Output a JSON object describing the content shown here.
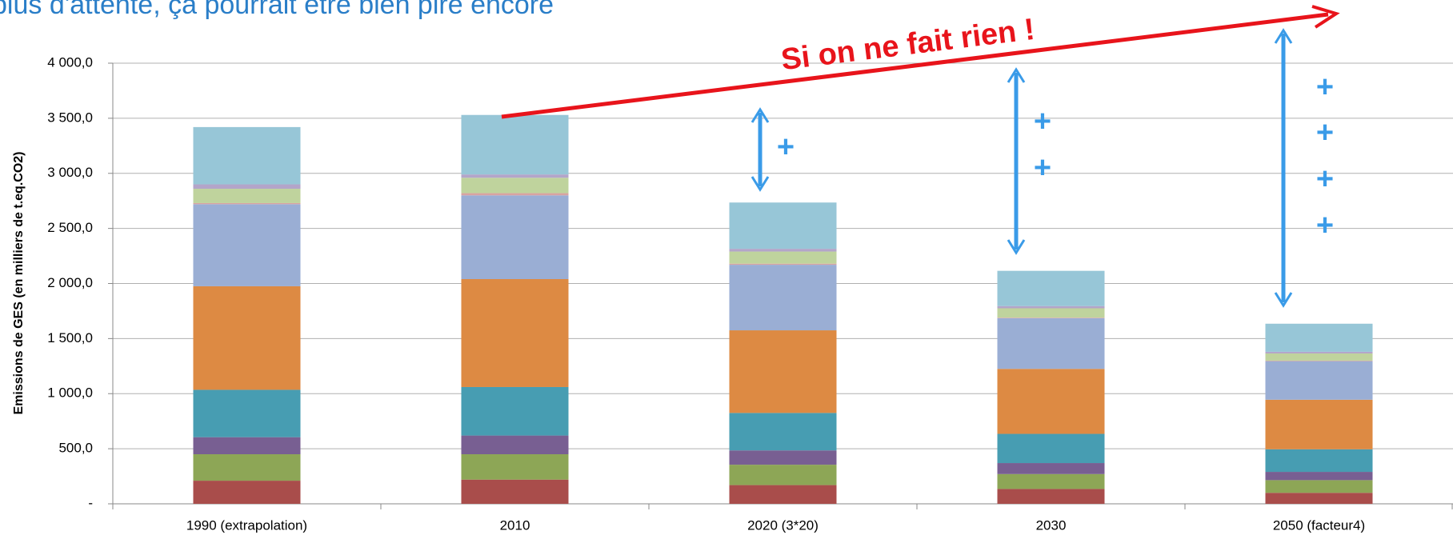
{
  "chart_data": {
    "type": "stacked_bar",
    "header": "plus d'attente, ça pourrait être bien pire encore",
    "ylabel": "Emissions de GES (en milliers de t.eq.CO2)",
    "annotation": "Si on ne fait rien !",
    "gap_marks": [
      [
        "+"
      ],
      [
        "+",
        "+"
      ],
      [
        "+",
        "+",
        "+",
        "+"
      ]
    ],
    "categories": [
      "1990 (extrapolation)",
      "2010",
      "2020 (3*20)",
      "2030",
      "2050 (facteur4)"
    ],
    "series": [
      {
        "color": "#a94d4b",
        "values": [
          210,
          220,
          170,
          135,
          100
        ]
      },
      {
        "color": "#8da656",
        "values": [
          240,
          230,
          185,
          135,
          115
        ]
      },
      {
        "color": "#785f92",
        "values": [
          155,
          170,
          130,
          100,
          75
        ]
      },
      {
        "color": "#479db2",
        "values": [
          430,
          440,
          340,
          265,
          205
        ]
      },
      {
        "color": "#dd8a43",
        "values": [
          940,
          980,
          750,
          590,
          450
        ]
      },
      {
        "color": "#9aaed4",
        "values": [
          745,
          760,
          595,
          460,
          350
        ]
      },
      {
        "color": "#d8a3a2",
        "values": [
          10,
          20,
          10,
          5,
          5
        ]
      },
      {
        "color": "#bfd39d",
        "values": [
          130,
          140,
          110,
          85,
          65
        ]
      },
      {
        "color": "#b3a5c9",
        "values": [
          40,
          30,
          25,
          20,
          15
        ]
      },
      {
        "color": "#97c6d7",
        "values": [
          520,
          540,
          420,
          320,
          255
        ]
      }
    ],
    "ylim": [
      0,
      4000
    ],
    "yticks": [
      {
        "value": 0,
        "label": "-"
      },
      {
        "value": 500,
        "label": "500,0"
      },
      {
        "value": 1000,
        "label": "1 000,0"
      },
      {
        "value": 1500,
        "label": "1 500,0"
      },
      {
        "value": 2000,
        "label": "2 000,0"
      },
      {
        "value": 2500,
        "label": "2 500,0"
      },
      {
        "value": 3000,
        "label": "3 000,0"
      },
      {
        "value": 3500,
        "label": "3 500,0"
      },
      {
        "value": 4000,
        "label": "4 000,0"
      }
    ],
    "grid": true
  }
}
